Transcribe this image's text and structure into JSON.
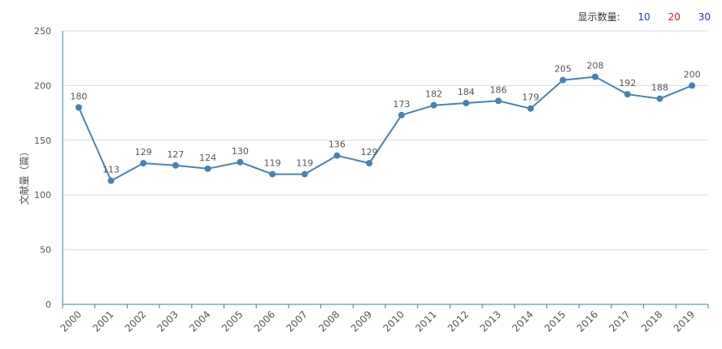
{
  "controls": {
    "label": "显示数量:",
    "options": [
      {
        "label": "10",
        "color": "#1a3cc8"
      },
      {
        "label": "20",
        "color": "#d01c1c"
      },
      {
        "label": "30",
        "color": "#1a3cc8"
      }
    ]
  },
  "chart_data": {
    "type": "line",
    "title": "",
    "xlabel": "",
    "ylabel": "文献量（篇）",
    "categories": [
      "2000",
      "2001",
      "2002",
      "2003",
      "2004",
      "2005",
      "2006",
      "2007",
      "2008",
      "2009",
      "2010",
      "2011",
      "2012",
      "2013",
      "2014",
      "2015",
      "2016",
      "2017",
      "2018",
      "2019"
    ],
    "series": [
      {
        "values": [
          180,
          113,
          129,
          127,
          124,
          130,
          119,
          119,
          136,
          129,
          173,
          182,
          184,
          186,
          179,
          205,
          208,
          192,
          188,
          200
        ]
      }
    ],
    "ylim": [
      0,
      250
    ],
    "yticks": [
      0,
      50,
      100,
      150,
      200,
      250
    ],
    "grid": true,
    "data_labels": true,
    "line_color": "#4682b4",
    "axis_color": "#2a8a9a"
  }
}
